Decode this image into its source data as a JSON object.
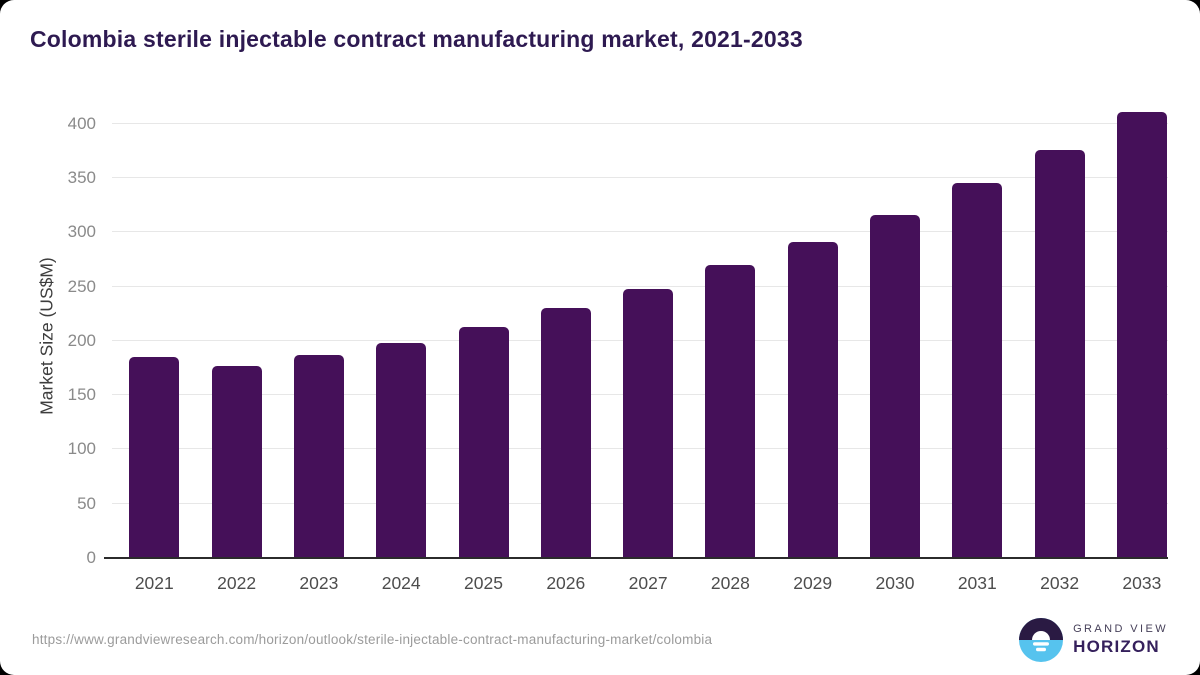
{
  "page": {
    "title": "Colombia sterile injectable contract manufacturing market, 2021-2033",
    "source_url": "https://www.grandviewresearch.com/horizon/outlook/sterile-injectable-contract-manufacturing-market/colombia"
  },
  "brand": {
    "name_top": "GRAND VIEW",
    "name_bottom": "HORIZON",
    "logo_icon": "horizon-sun-circle-icon",
    "logo_dark_color": "#2a1a43",
    "logo_blue_color": "#56c3ee"
  },
  "chart_data": {
    "type": "bar",
    "title": "Colombia sterile injectable contract manufacturing market, 2021-2033",
    "categories": [
      "2021",
      "2022",
      "2023",
      "2024",
      "2025",
      "2026",
      "2027",
      "2028",
      "2029",
      "2030",
      "2031",
      "2032",
      "2033"
    ],
    "values": [
      185,
      177,
      187,
      198,
      213,
      230,
      248,
      270,
      291,
      316,
      345,
      376,
      411
    ],
    "xlabel": "",
    "ylabel": "Market Size (US$M)",
    "ylim": [
      0,
      400
    ],
    "yticks": [
      0,
      50,
      100,
      150,
      200,
      250,
      300,
      350,
      400
    ],
    "grid": "horizontal-only",
    "legend": "none",
    "bar_color": "#451059",
    "gridline_color": "#e7e7e7",
    "axis_line_color": "#2b2b2b",
    "tick_label_color": "#8a8a8a"
  }
}
